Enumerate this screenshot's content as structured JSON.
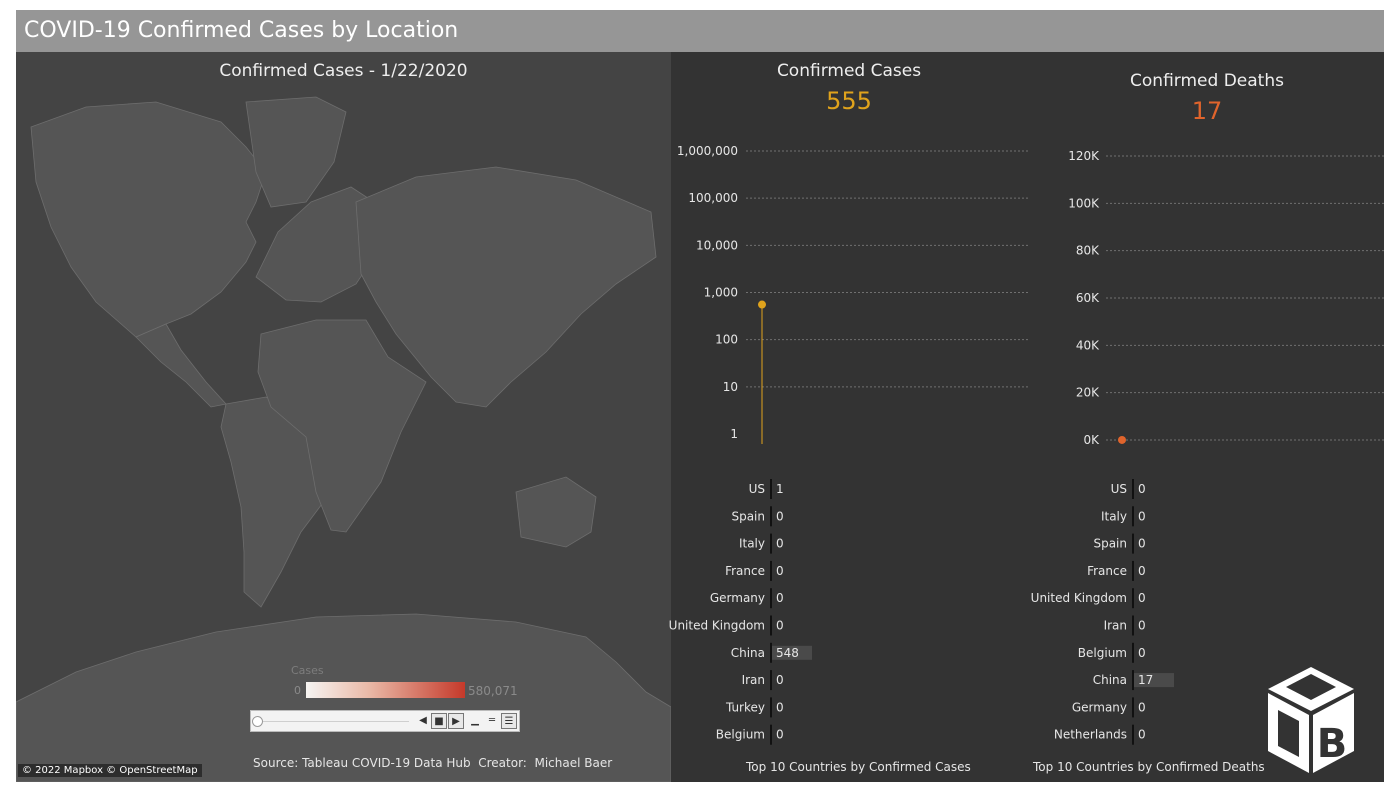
{
  "dashboard": {
    "title": "COVID-19 Confirmed Cases by Location",
    "map_title": "Confirmed Cases - 1/22/2020",
    "attribution": "© 2022 Mapbox © OpenStreetMap",
    "source": "Source: Tableau COVID-19 Data Hub  Creator:  Michael Baer",
    "legend": {
      "title": "Cases",
      "min": "0",
      "max": "580,071"
    },
    "colors": {
      "background": "#333333",
      "titlebar": "#969696",
      "cases": "#e0a31c",
      "deaths": "#e0642c"
    }
  },
  "cases": {
    "title": "Confirmed Cases",
    "value": "555",
    "footnote": "Top 10 Countries by Confirmed Cases"
  },
  "deaths": {
    "title": "Confirmed Deaths",
    "value": "17",
    "footnote": "Top 10 Countries by Confirmed Deaths"
  },
  "chart_data": [
    {
      "type": "line",
      "yscale": "log",
      "yticks": [
        "1",
        "10",
        "100",
        "1,000",
        "10,000",
        "100,000",
        "1,000,000"
      ],
      "ylim": [
        1,
        1000000
      ],
      "x": [
        "1/22/2020"
      ],
      "series": [
        {
          "values": [
            555
          ]
        }
      ],
      "color": "#e0a31c",
      "grid": true
    },
    {
      "type": "line",
      "yticks": [
        "0K",
        "20K",
        "40K",
        "60K",
        "80K",
        "100K",
        "120K"
      ],
      "ylim": [
        0,
        120000
      ],
      "x": [
        "1/22/2020"
      ],
      "series": [
        {
          "values": [
            17
          ]
        }
      ],
      "color": "#e0642c",
      "grid": true
    },
    {
      "type": "bar",
      "title": "Top 10 Countries by Confirmed Cases",
      "categories": [
        "US",
        "Spain",
        "Italy",
        "France",
        "Germany",
        "United Kingdom",
        "China",
        "Iran",
        "Turkey",
        "Belgium"
      ],
      "values": [
        1,
        0,
        0,
        0,
        0,
        0,
        548,
        0,
        0,
        0
      ]
    },
    {
      "type": "bar",
      "title": "Top 10 Countries by Confirmed Deaths",
      "categories": [
        "US",
        "Italy",
        "Spain",
        "France",
        "United Kingdom",
        "Iran",
        "Belgium",
        "China",
        "Germany",
        "Netherlands"
      ],
      "values": [
        0,
        0,
        0,
        0,
        0,
        0,
        0,
        17,
        0,
        0
      ]
    }
  ]
}
